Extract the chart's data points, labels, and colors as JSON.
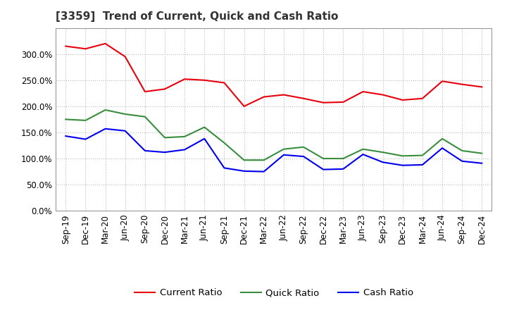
{
  "title": "[3359]  Trend of Current, Quick and Cash Ratio",
  "x_labels": [
    "Sep-19",
    "Dec-19",
    "Mar-20",
    "Jun-20",
    "Sep-20",
    "Dec-20",
    "Mar-21",
    "Jun-21",
    "Sep-21",
    "Dec-21",
    "Mar-22",
    "Jun-22",
    "Sep-22",
    "Dec-22",
    "Mar-23",
    "Jun-23",
    "Sep-23",
    "Dec-23",
    "Mar-24",
    "Jun-24",
    "Sep-24",
    "Dec-24"
  ],
  "current_ratio": [
    315,
    310,
    320,
    295,
    228,
    233,
    252,
    250,
    245,
    200,
    218,
    222,
    215,
    207,
    208,
    228,
    222,
    212,
    215,
    248,
    242,
    237
  ],
  "quick_ratio": [
    175,
    173,
    193,
    185,
    180,
    140,
    142,
    160,
    130,
    97,
    97,
    118,
    122,
    100,
    100,
    118,
    112,
    105,
    106,
    138,
    115,
    110
  ],
  "cash_ratio": [
    143,
    137,
    157,
    153,
    115,
    112,
    117,
    138,
    82,
    76,
    75,
    107,
    104,
    79,
    80,
    108,
    93,
    87,
    88,
    120,
    95,
    91
  ],
  "ylim": [
    0,
    350
  ],
  "yticks": [
    0,
    50,
    100,
    150,
    200,
    250,
    300
  ],
  "current_color": "#e8000d",
  "quick_color": "#388e3c",
  "cash_color": "#0000ee",
  "background_color": "#ffffff",
  "grid_color": "#aaaaaa",
  "title_fontsize": 11,
  "legend_fontsize": 9.5,
  "tick_fontsize": 8.5
}
